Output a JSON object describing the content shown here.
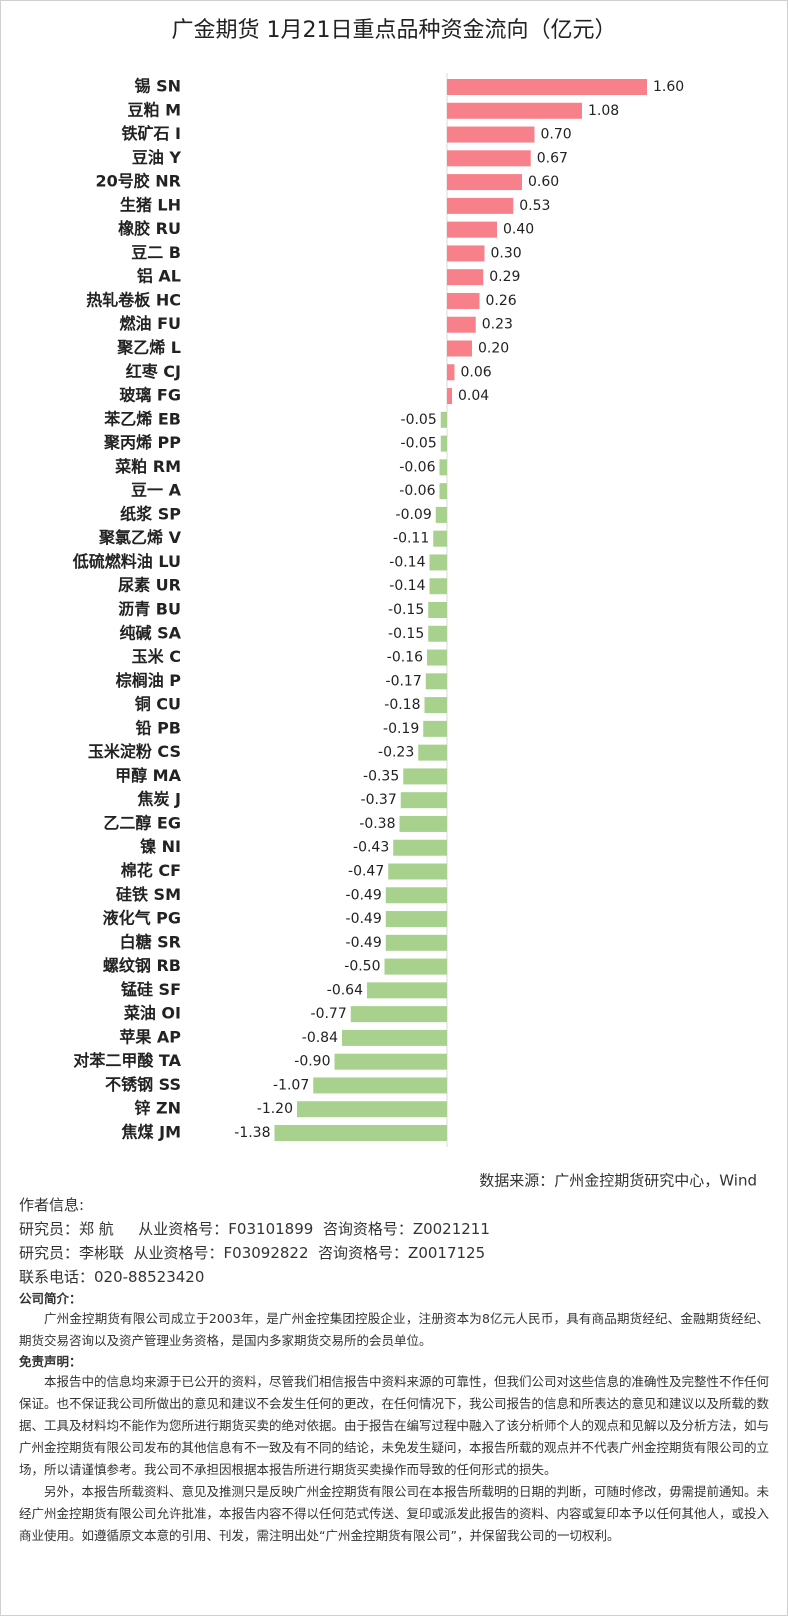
{
  "chart_data": {
    "type": "hbar",
    "title": "广金期货 1月21日重点品种资金流向（亿元）",
    "categories": [
      "锡 SN",
      "豆粕 M",
      "铁矿石 I",
      "豆油 Y",
      "20号胶 NR",
      "生猪 LH",
      "橡胶 RU",
      "豆二 B",
      "铝 AL",
      "热轧卷板 HC",
      "燃油 FU",
      "聚乙烯 L",
      "红枣 CJ",
      "玻璃 FG",
      "苯乙烯 EB",
      "聚丙烯 PP",
      "菜粕 RM",
      "豆一 A",
      "纸浆 SP",
      "聚氯乙烯 V",
      "低硫燃料油 LU",
      "尿素 UR",
      "沥青 BU",
      "纯碱 SA",
      "玉米 C",
      "棕榈油 P",
      "铜 CU",
      "铅 PB",
      "玉米淀粉 CS",
      "甲醇 MA",
      "焦炭 J",
      "乙二醇 EG",
      "镍 NI",
      "棉花 CF",
      "硅铁 SM",
      "液化气 PG",
      "白糖 SR",
      "螺纹钢 RB",
      "锰硅 SF",
      "菜油 OI",
      "苹果 AP",
      "对苯二甲酸 TA",
      "不锈钢 SS",
      "锌 ZN",
      "焦煤 JM"
    ],
    "values": [
      1.6,
      1.08,
      0.7,
      0.67,
      0.6,
      0.53,
      0.4,
      0.3,
      0.29,
      0.26,
      0.23,
      0.2,
      0.06,
      0.04,
      -0.05,
      -0.05,
      -0.06,
      -0.06,
      -0.09,
      -0.11,
      -0.14,
      -0.14,
      -0.15,
      -0.15,
      -0.16,
      -0.17,
      -0.18,
      -0.19,
      -0.23,
      -0.35,
      -0.37,
      -0.38,
      -0.43,
      -0.47,
      -0.49,
      -0.49,
      -0.49,
      -0.5,
      -0.64,
      -0.77,
      -0.84,
      -0.9,
      -1.07,
      -1.2,
      -1.38
    ],
    "value_labels": [
      "1.60",
      "1.08",
      "0.70",
      "0.67",
      "0.60",
      "0.53",
      "0.40",
      "0.30",
      "0.29",
      "0.26",
      "0.23",
      "0.20",
      "0.06",
      "0.04",
      "-0.05",
      "-0.05",
      "-0.06",
      "-0.06",
      "-0.09",
      "-0.11",
      "-0.14",
      "-0.14",
      "-0.15",
      "-0.15",
      "-0.16",
      "-0.17",
      "-0.18",
      "-0.19",
      "-0.23",
      "-0.35",
      "-0.37",
      "-0.38",
      "-0.43",
      "-0.47",
      "-0.49",
      "-0.49",
      "-0.49",
      "-0.50",
      "-0.64",
      "-0.77",
      "-0.84",
      "-0.90",
      "-1.07",
      "-1.20",
      "-1.38"
    ],
    "positive_color": "#f8808a",
    "negative_color": "#a9d18e",
    "source": "数据来源：广州金控期货研究中心，Wind"
  },
  "footer": {
    "author_title": "作者信息:",
    "researchers": [
      "研究员：郑 航　  从业资格号：F03101899  咨询资格号：Z0021211",
      "研究员：李彬联  从业资格号：F03092822  咨询资格号：Z0017125"
    ],
    "phone": "联系电话：020-88523420",
    "intro_title": "公司简介：",
    "intro": "广州金控期货有限公司成立于2003年，是广州金控集团控股企业，注册资本为8亿元人民币，具有商品期货经纪、金融期货经纪、期货交易咨询以及资产管理业务资格，是国内多家期货交易所的会员单位。",
    "disclaimer_title": "免责声明：",
    "disclaimer": [
      "本报告中的信息均来源于已公开的资料，尽管我们相信报告中资料来源的可靠性，但我们公司对这些信息的准确性及完整性不作任何保证。也不保证我公司所做出的意见和建议不会发生任何的更改，在任何情况下，我公司报告的信息和所表达的意见和建议以及所载的数据、工具及材料均不能作为您所进行期货买卖的绝对依据。由于报告在编写过程中融入了该分析师个人的观点和见解以及分析方法，如与广州金控期货有限公司发布的其他信息有不一致及有不同的结论，未免发生疑问，本报告所载的观点并不代表广州金控期货有限公司的立场，所以请谨慎参考。我公司不承担因根据本报告所进行期货买卖操作而导致的任何形式的损失。",
      "另外，本报告所载资料、意见及推测只是反映广州金控期货有限公司在本报告所载明的日期的判断，可随时修改，毋需提前通知。未经广州金控期货有限公司允许批准，本报告内容不得以任何范式传送、复印或派发此报告的资料、内容或复印本予以任何其他人，或投入商业使用。如遵循原文本意的引用、刊发，需注明出处“广州金控期货有限公司”，并保留我公司的一切权利。"
    ]
  }
}
